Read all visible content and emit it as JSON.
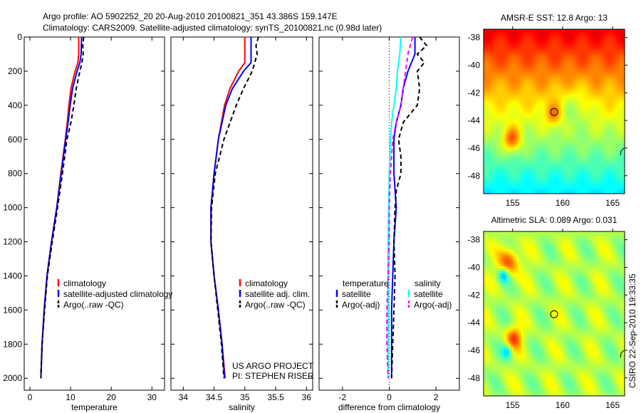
{
  "title": {
    "line1": "Argo profile: AO 5902252_20 20-Aug-2010 20100821_351 43.386S 159.147E",
    "line2": "Climatology: CARS2009. Satellite-adjusted climatology: synTS_20100821.nc (0.98d later)"
  },
  "credit": {
    "line1": "US ARGO PROJECT",
    "line2": "PI: STEPHEN RISER"
  },
  "timestamp": "CSIRO 22-Sep-2010 19:33:35",
  "colors": {
    "climatology": "#ff0000",
    "satellite": "#0000ff",
    "argo": "#000000",
    "sal_satellite": "#00ffff",
    "sal_argo": "#ff00ff"
  },
  "chart_data": [
    {
      "type": "line",
      "xlabel": "temperature",
      "ylabel": "",
      "xlim": [
        -1.4,
        33.1
      ],
      "ylim": [
        2070,
        0
      ],
      "xticks": [
        "0",
        "10",
        "20",
        "30"
      ],
      "yticks": [
        "0",
        "200",
        "400",
        "600",
        "800",
        "1000",
        "1200",
        "1400",
        "1600",
        "1800",
        "2000"
      ],
      "legend": [
        "climatology",
        "satellite-adjusted climatology",
        "Argo(..raw -QC)"
      ],
      "series": [
        {
          "name": "climatology",
          "color": "#ff0000",
          "dash": false,
          "depth": [
            0,
            100,
            150,
            200,
            300,
            400,
            500,
            600,
            800,
            1000,
            1200,
            1400,
            1600,
            1800,
            2000
          ],
          "values": [
            12,
            12,
            11.8,
            11.1,
            10.1,
            9.6,
            9.2,
            8.7,
            7.6,
            6.6,
            5.3,
            4.2,
            3.5,
            3.0,
            2.7
          ]
        },
        {
          "name": "satellite-adjusted climatology",
          "color": "#0000ff",
          "dash": false,
          "depth": [
            0,
            100,
            150,
            200,
            300,
            400,
            500,
            600,
            800,
            1000,
            1200,
            1400,
            1600,
            1800,
            2000
          ],
          "values": [
            12.7,
            12.6,
            12.3,
            11.6,
            10.5,
            9.9,
            9.4,
            8.8,
            7.7,
            6.6,
            5.3,
            4.2,
            3.5,
            3.0,
            2.7
          ]
        },
        {
          "name": "Argo(..raw -QC)",
          "color": "#000000",
          "dash": true,
          "depth": [
            0,
            50,
            100,
            150,
            200,
            300,
            400,
            500,
            600,
            800,
            1000,
            1200,
            1400,
            1600,
            1800,
            2000
          ],
          "values": [
            13.2,
            13.0,
            13.1,
            12.8,
            12.3,
            11.4,
            10.8,
            10.1,
            9.1,
            8.0,
            6.8,
            5.5,
            4.3,
            3.6,
            3.0,
            2.7
          ]
        }
      ]
    },
    {
      "type": "line",
      "xlabel": "salinity",
      "xlim": [
        33.8,
        36.1
      ],
      "ylim": [
        2070,
        0
      ],
      "xticks": [
        "34",
        "34.5",
        "35",
        "35.5",
        "36"
      ],
      "legend": [
        "climatology",
        "satellite adj. clim.",
        "Argo(..raw -QC)"
      ],
      "series": [
        {
          "name": "climatology",
          "color": "#ff0000",
          "dash": false,
          "depth": [
            0,
            150,
            200,
            300,
            400,
            500,
            600,
            800,
            1000,
            1200,
            1400,
            1600,
            1800,
            2000
          ],
          "values": [
            35.0,
            35.0,
            34.9,
            34.76,
            34.67,
            34.62,
            34.57,
            34.5,
            34.45,
            34.45,
            34.5,
            34.57,
            34.63,
            34.68
          ]
        },
        {
          "name": "satellite adj. clim.",
          "color": "#0000ff",
          "dash": false,
          "depth": [
            0,
            150,
            200,
            300,
            400,
            500,
            600,
            800,
            1000,
            1200,
            1400,
            1600,
            1800,
            2000
          ],
          "values": [
            35.1,
            35.1,
            34.98,
            34.8,
            34.69,
            34.63,
            34.57,
            34.5,
            34.45,
            34.45,
            34.5,
            34.57,
            34.63,
            34.67
          ]
        },
        {
          "name": "Argo(..raw -QC)",
          "color": "#000000",
          "dash": true,
          "depth": [
            0,
            50,
            100,
            150,
            200,
            300,
            400,
            500,
            600,
            800,
            1000,
            1200,
            1400,
            1600,
            1800,
            2000
          ],
          "values": [
            35.22,
            35.18,
            35.2,
            35.16,
            35.12,
            34.98,
            34.86,
            34.76,
            34.66,
            34.52,
            34.46,
            34.45,
            34.5,
            34.56,
            34.62,
            34.66
          ]
        }
      ]
    },
    {
      "type": "line",
      "xlabel": "difference from climatology",
      "xlim": [
        -3.0,
        3.0
      ],
      "ylim": [
        2070,
        0
      ],
      "xticks": [
        "-2",
        "0",
        "2"
      ],
      "legend": {
        "temperature": [
          "satellite",
          "Argo(-adj)"
        ],
        "salinity": [
          "satellite",
          "Argo(-adj)"
        ]
      },
      "legend_headers": [
        "temperature",
        "salinity"
      ],
      "series": [
        {
          "name": "temperature satellite",
          "color": "#0000ff",
          "dash": false,
          "depth": [
            0,
            100,
            200,
            300,
            400,
            500,
            600,
            800,
            1000,
            1200,
            1400,
            1600,
            1800,
            2000
          ],
          "values": [
            1.1,
            1.1,
            0.8,
            0.6,
            0.5,
            0.3,
            0.2,
            0.2,
            0.3,
            0.2,
            0.15,
            0.1,
            0.1,
            0.1
          ]
        },
        {
          "name": "temperature Argo(-adj)",
          "color": "#000000",
          "dash": true,
          "depth": [
            0,
            50,
            100,
            150,
            200,
            300,
            400,
            500,
            600,
            700,
            800,
            900,
            1000,
            1200,
            1400,
            1600,
            1800,
            2000
          ],
          "values": [
            1.3,
            1.6,
            1.2,
            1.5,
            1.2,
            1.3,
            1.2,
            0.6,
            0.4,
            0.5,
            0.5,
            0.3,
            0.25,
            0.2,
            0.25,
            0.2,
            0.15,
            0.1
          ]
        },
        {
          "name": "salinity satellite",
          "color": "#00ffff",
          "dash": false,
          "depth": [
            0,
            100,
            200,
            300,
            400,
            500,
            600,
            800,
            1000,
            1200,
            1400,
            1600,
            1800,
            2000
          ],
          "values": [
            0.5,
            0.45,
            0.35,
            0.3,
            0.2,
            0.1,
            0.05,
            0.0,
            -0.02,
            -0.05,
            -0.05,
            -0.05,
            -0.05,
            -0.05
          ]
        },
        {
          "name": "salinity Argo(-adj)",
          "color": "#ff00ff",
          "dash": true,
          "depth": [
            0,
            100,
            200,
            300,
            400,
            500,
            600,
            800,
            1000,
            1200,
            1400,
            1600,
            1800,
            2000
          ],
          "values": [
            1.0,
            0.8,
            0.7,
            0.6,
            0.5,
            0.3,
            0.15,
            0.05,
            0.0,
            0.0,
            -0.05,
            -0.1,
            -0.1,
            -0.05
          ]
        }
      ]
    },
    {
      "type": "heatmap",
      "title": "AMSR-E SST: 12.8 Argo: 13",
      "xlim": [
        152.1,
        166.2
      ],
      "ylim": [
        -49.3,
        -37.4
      ],
      "xticks": [
        "155",
        "160",
        "165"
      ],
      "yticks": [
        "-38",
        "-40",
        "-42",
        "-44",
        "-46",
        "-48"
      ],
      "marker": {
        "lon": 159.15,
        "lat": -43.39
      }
    },
    {
      "type": "heatmap",
      "title": "Altimetric SLA: 0.089 Argo: 0.031",
      "xlim": [
        152.1,
        166.2
      ],
      "ylim": [
        -49.3,
        -37.4
      ],
      "xticks": [
        "155",
        "160",
        "165"
      ],
      "yticks": [
        "-38",
        "-40",
        "-42",
        "-44",
        "-46",
        "-48"
      ],
      "marker": {
        "lon": 159.15,
        "lat": -43.39
      }
    }
  ]
}
